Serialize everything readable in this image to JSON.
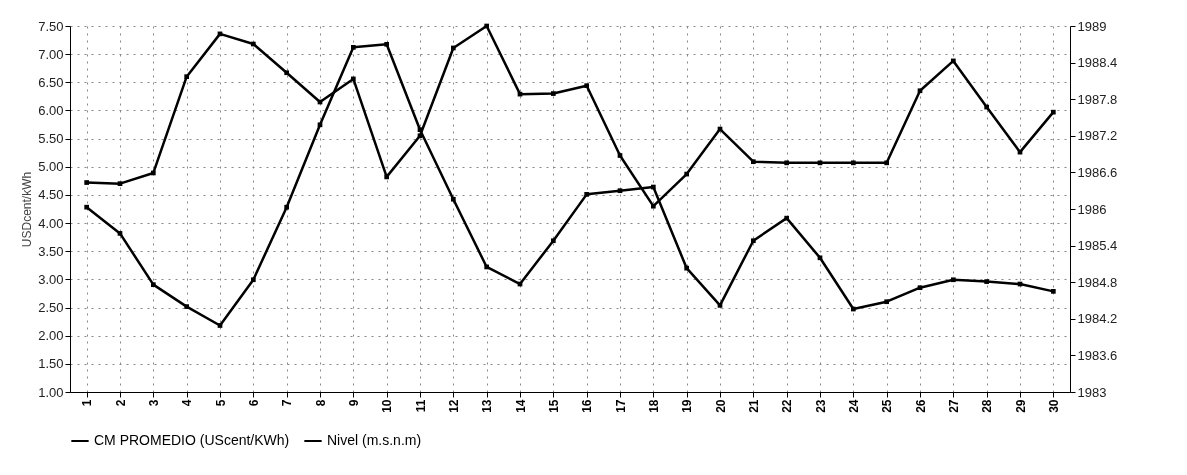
{
  "chart_data": {
    "type": "line",
    "ylabel": "USDcent/kWh",
    "categories": [
      "1",
      "2",
      "3",
      "4",
      "5",
      "6",
      "7",
      "8",
      "9",
      "10",
      "11",
      "12",
      "13",
      "14",
      "15",
      "16",
      "17",
      "18",
      "19",
      "20",
      "21",
      "22",
      "23",
      "24",
      "25",
      "26",
      "27",
      "28",
      "29",
      "30"
    ],
    "series": [
      {
        "name": "CM PROMEDIO (UScent/KWh)",
        "color": "#000000",
        "values": [
          4.72,
          4.7,
          4.89,
          6.6,
          7.36,
          7.18,
          6.67,
          6.15,
          6.56,
          4.82,
          5.55,
          7.11,
          7.5,
          6.29,
          6.3,
          6.44,
          5.2,
          4.3,
          4.87,
          5.67,
          5.09,
          5.07,
          5.07,
          5.07,
          5.07,
          6.35,
          6.88,
          6.06,
          5.26,
          5.97
        ]
      },
      {
        "name": "Nivel (m.s.n.m)",
        "color": "#000000",
        "axis": "y2",
        "values": [
          1986.03,
          1985.6,
          1984.76,
          1984.4,
          1984.09,
          1984.84,
          1986.03,
          1987.38,
          1988.65,
          1988.7,
          1987.3,
          1986.16,
          1985.05,
          1984.77,
          1985.48,
          1986.24,
          1986.3,
          1986.36,
          1985.03,
          1984.42,
          1985.48,
          1985.85,
          1985.2,
          1984.36,
          1984.48,
          1984.71,
          1984.84,
          1984.81,
          1984.77,
          1984.65
        ]
      }
    ],
    "ylim": [
      1,
      7.5
    ],
    "yticks": [
      {
        "value": 1,
        "label": "1.00"
      },
      {
        "value": 1.5,
        "label": "1.50"
      },
      {
        "value": 2,
        "label": "2.00"
      },
      {
        "value": 2.5,
        "label": "2.50"
      },
      {
        "value": 3,
        "label": "3.00"
      },
      {
        "value": 3.5,
        "label": "3.50"
      },
      {
        "value": 4,
        "label": "4.00"
      },
      {
        "value": 4.5,
        "label": "4.50"
      },
      {
        "value": 5,
        "label": "5.00"
      },
      {
        "value": 5.5,
        "label": "5.50"
      },
      {
        "value": 6,
        "label": "6.00"
      },
      {
        "value": 6.5,
        "label": "6.50"
      },
      {
        "value": 7,
        "label": "7.00"
      },
      {
        "value": 7.5,
        "label": "7.50"
      }
    ],
    "y2lim": [
      1983,
      1989
    ],
    "y2ticks": [
      1983,
      1983.6,
      1984.2,
      1984.8,
      1985.4,
      1986,
      1986.6,
      1987.2,
      1987.8,
      1988.4,
      1989
    ],
    "grid": true,
    "legend": "bottom",
    "marker": "square",
    "line_style": "solid"
  }
}
